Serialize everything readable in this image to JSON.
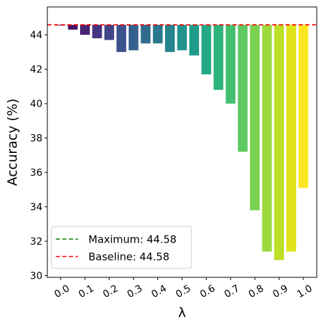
{
  "chart_data": {
    "type": "bar",
    "xlabel": "λ",
    "ylabel": "Accuracy (%)",
    "ylim": [
      29.9,
      45.62
    ],
    "grid": false,
    "legend_position": "lower-left",
    "baseline_value": 44.58,
    "x": [
      0.0,
      0.05,
      0.1,
      0.15,
      0.2,
      0.25,
      0.3,
      0.35,
      0.4,
      0.45,
      0.5,
      0.55,
      0.6,
      0.65,
      0.7,
      0.75,
      0.8,
      0.85,
      0.9,
      0.95,
      1.0
    ],
    "values": [
      44.58,
      44.3,
      44.0,
      43.8,
      43.7,
      43.0,
      43.1,
      43.5,
      43.5,
      43.0,
      43.1,
      42.8,
      41.7,
      40.8,
      40.0,
      37.2,
      33.8,
      31.4,
      30.9,
      31.4,
      35.1
    ],
    "colors": [
      "#440154",
      "#471365",
      "#482475",
      "#463480",
      "#414487",
      "#3b528b",
      "#355f8d",
      "#2f6c8e",
      "#2a788e",
      "#25848e",
      "#21918c",
      "#1e9c89",
      "#22a884",
      "#2fb47c",
      "#44bf70",
      "#5ec962",
      "#7ad151",
      "#9bd93c",
      "#bddf26",
      "#dfe318",
      "#fde725"
    ],
    "xtick_values": [
      0.0,
      0.1,
      0.2,
      0.3,
      0.4,
      0.5,
      0.6,
      0.7,
      0.8,
      0.9,
      1.0
    ],
    "xtick_labels": [
      "0.0",
      "0.1",
      "0.2",
      "0.3",
      "0.4",
      "0.5",
      "0.6",
      "0.7",
      "0.8",
      "0.9",
      "1.0"
    ],
    "ytick_values": [
      30,
      32,
      34,
      36,
      38,
      40,
      42,
      44
    ],
    "ytick_labels": [
      "30",
      "32",
      "34",
      "36",
      "38",
      "40",
      "42",
      "44"
    ],
    "reference_lines": [
      {
        "label": "Maximum: 44.58",
        "value": 44.58,
        "color": "#008000",
        "style": "dashed"
      },
      {
        "label": "Baseline: 44.58",
        "value": 44.58,
        "color": "#ff0000",
        "style": "dashed"
      }
    ]
  }
}
